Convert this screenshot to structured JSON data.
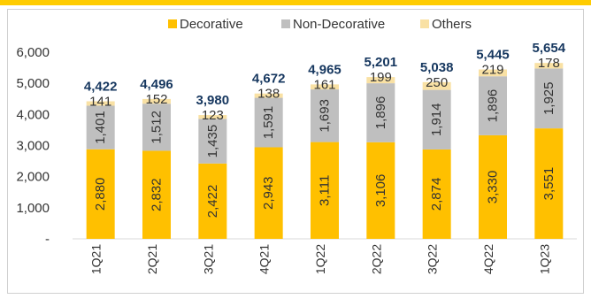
{
  "colors": {
    "accent": "#ffcc00",
    "decorative": "#ffc000",
    "non_decorative": "#bfbfbf",
    "others": "#f9e1a4",
    "total": "#16375f",
    "axis": "#d9d9d9"
  },
  "chart_data": {
    "type": "bar",
    "stacked": true,
    "categories": [
      "1Q21",
      "2Q21",
      "3Q21",
      "4Q21",
      "1Q22",
      "2Q22",
      "3Q22",
      "4Q22",
      "1Q23"
    ],
    "series": [
      {
        "name": "Decorative",
        "values": [
          2880,
          2832,
          2422,
          2943,
          3111,
          3106,
          2874,
          3330,
          3551
        ],
        "labels": [
          "2,880",
          "2,832",
          "2,422",
          "2,943",
          "3,111",
          "3,106",
          "2,874",
          "3,330",
          "3,551"
        ]
      },
      {
        "name": "Non-Decorative",
        "values": [
          1401,
          1512,
          1435,
          1591,
          1693,
          1896,
          1914,
          1896,
          1925
        ],
        "labels": [
          "1,401",
          "1,512",
          "1,435",
          "1,591",
          "1,693",
          "1,896",
          "1,914",
          "1,896",
          "1,925"
        ]
      },
      {
        "name": "Others",
        "values": [
          141,
          152,
          123,
          138,
          161,
          199,
          250,
          219,
          178
        ],
        "labels": [
          "141",
          "152",
          "123",
          "138",
          "161",
          "199",
          "250",
          "219",
          "178"
        ]
      }
    ],
    "totals": [
      "4,422",
      "4,496",
      "3,980",
      "4,672",
      "4,965",
      "5,201",
      "5,038",
      "5,445",
      "5,654"
    ],
    "ylim": [
      0,
      6000
    ],
    "yticks": [
      0,
      1000,
      2000,
      3000,
      4000,
      5000,
      6000
    ],
    "ytick_labels": [
      "-",
      "1,000",
      "2,000",
      "3,000",
      "4,000",
      "5,000",
      "6,000"
    ],
    "grid": false,
    "legend_position": "top"
  }
}
